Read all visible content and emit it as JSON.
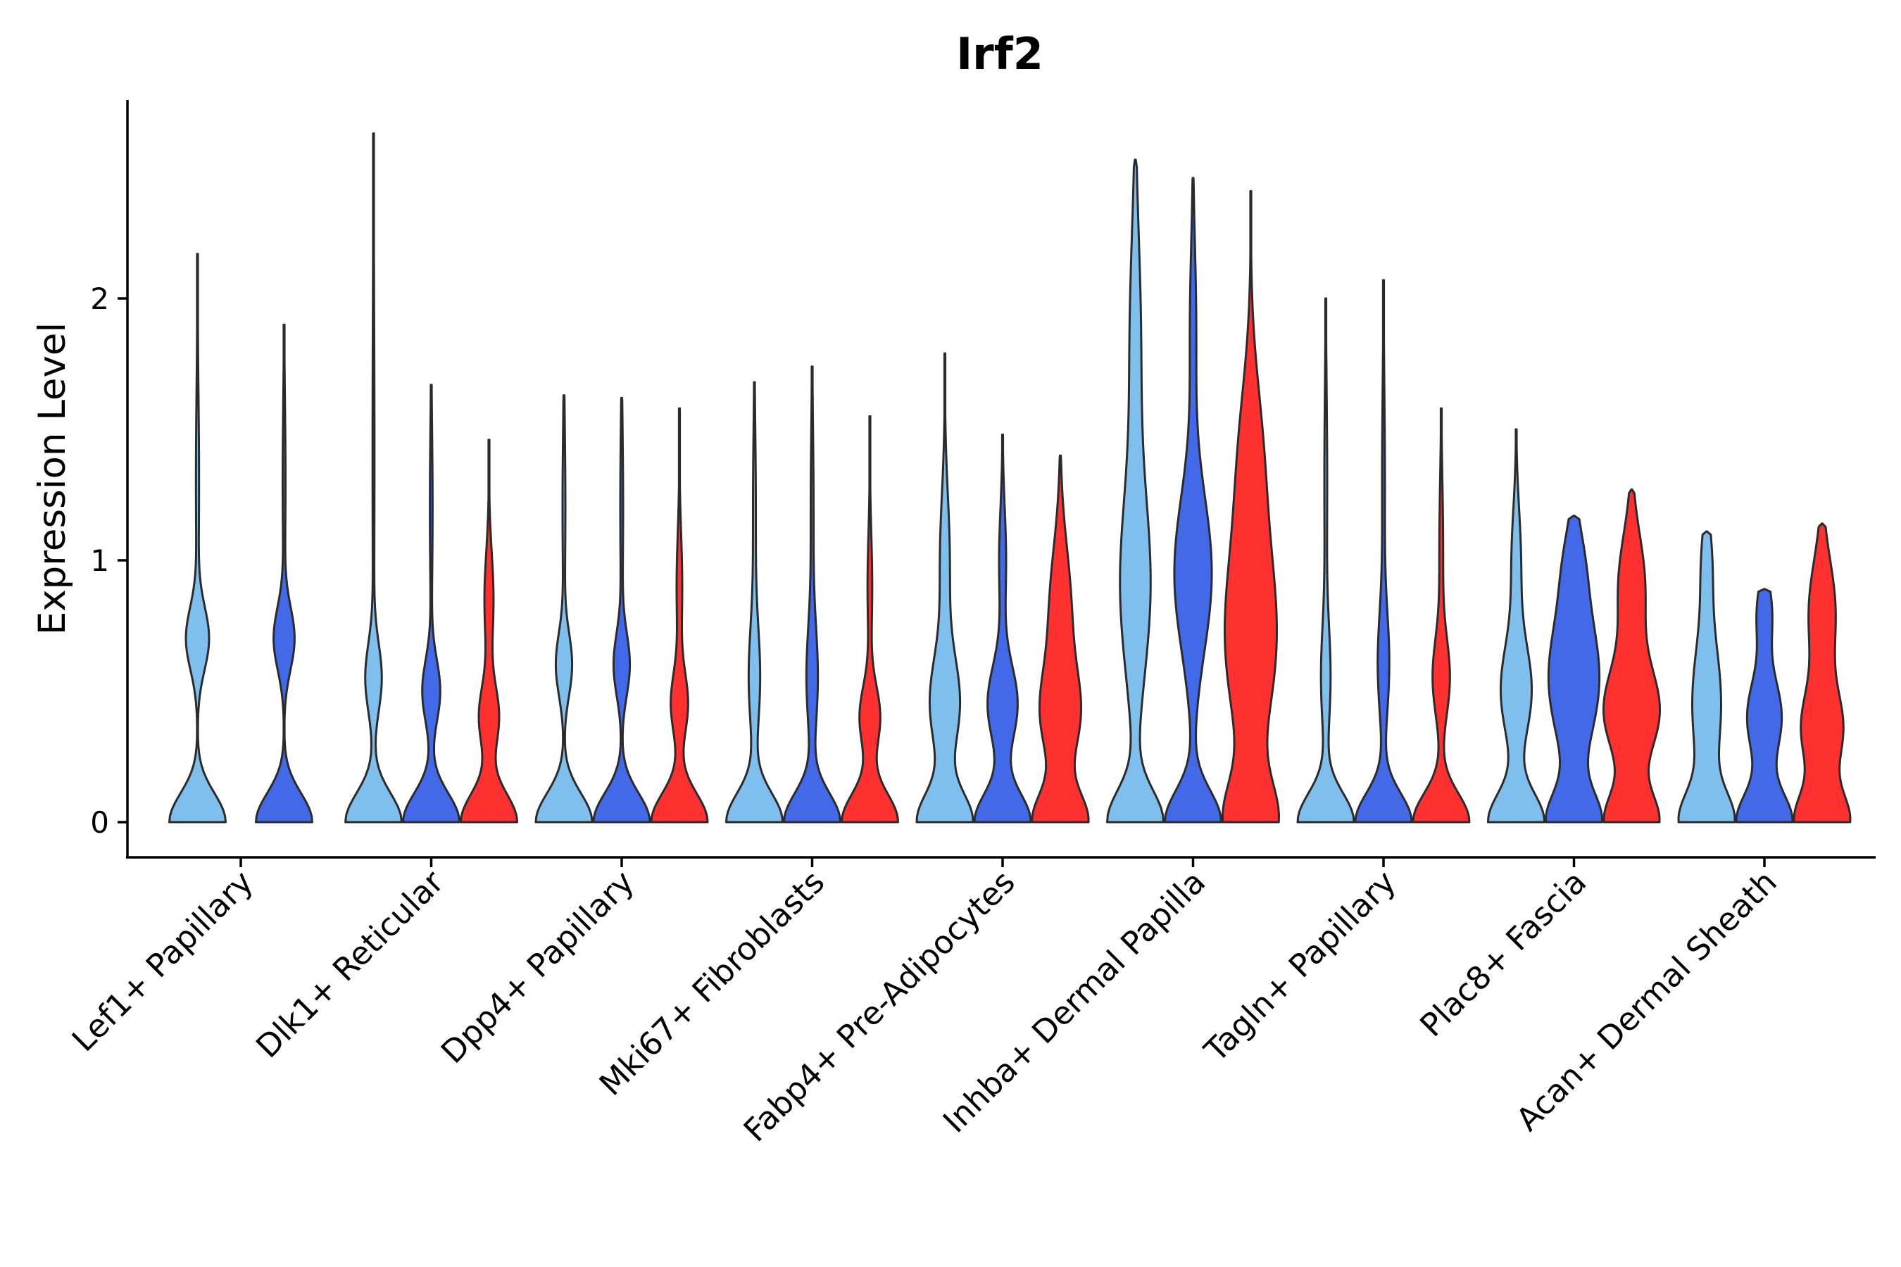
{
  "chart_data": {
    "type": "violin",
    "title": "Irf2",
    "xlabel": "",
    "ylabel": "Expression Level",
    "ylim": [
      -0.13,
      2.75
    ],
    "yticks": [
      0,
      1,
      2
    ],
    "group_colors": [
      "#7fbfee",
      "#4169e8",
      "#ff3030"
    ],
    "categories": [
      {
        "label": "Lef1+ Papillary",
        "violins": [
          {
            "group": 0,
            "max": 2.17,
            "peaks": [
              [
                0.0,
                0.55,
                0.11
              ],
              [
                0.7,
                0.22,
                0.12
              ],
              [
                1.3,
                0.03,
                0.35
              ]
            ]
          },
          {
            "group": 1,
            "max": 1.9,
            "peaks": [
              [
                0.0,
                0.6,
                0.11
              ],
              [
                0.7,
                0.22,
                0.12
              ],
              [
                1.3,
                0.03,
                0.3
              ]
            ]
          }
        ]
      },
      {
        "label": "Dlk1+ Reticular",
        "violins": [
          {
            "group": 0,
            "max": 2.63,
            "peaks": [
              [
                0.0,
                0.6,
                0.11
              ],
              [
                0.55,
                0.17,
                0.13
              ],
              [
                1.4,
                0.02,
                0.6
              ]
            ]
          },
          {
            "group": 1,
            "max": 1.67,
            "peaks": [
              [
                0.0,
                0.63,
                0.11
              ],
              [
                0.5,
                0.2,
                0.12
              ],
              [
                1.2,
                0.03,
                0.3
              ]
            ]
          },
          {
            "group": 2,
            "max": 1.46,
            "peaks": [
              [
                0.0,
                0.62,
                0.11
              ],
              [
                0.4,
                0.22,
                0.12
              ],
              [
                0.85,
                0.1,
                0.18
              ]
            ]
          }
        ]
      },
      {
        "label": "Dpp4+ Papillary",
        "violins": [
          {
            "group": 0,
            "max": 1.63,
            "peaks": [
              [
                0.0,
                0.6,
                0.11
              ],
              [
                0.6,
                0.17,
                0.12
              ],
              [
                1.2,
                0.03,
                0.3
              ]
            ]
          },
          {
            "group": 1,
            "max": 1.62,
            "peaks": [
              [
                0.0,
                0.6,
                0.11
              ],
              [
                0.6,
                0.17,
                0.12
              ],
              [
                1.2,
                0.03,
                0.3
              ]
            ]
          },
          {
            "group": 2,
            "max": 1.58,
            "peaks": [
              [
                0.0,
                0.6,
                0.11
              ],
              [
                0.45,
                0.18,
                0.12
              ],
              [
                0.9,
                0.06,
                0.2
              ]
            ]
          }
        ]
      },
      {
        "label": "Mki67+ Fibroblasts",
        "violins": [
          {
            "group": 0,
            "max": 1.68,
            "peaks": [
              [
                0.0,
                0.6,
                0.11
              ],
              [
                0.55,
                0.12,
                0.2
              ],
              [
                1.2,
                0.03,
                0.3
              ]
            ]
          },
          {
            "group": 1,
            "max": 1.74,
            "peaks": [
              [
                0.0,
                0.6,
                0.11
              ],
              [
                0.55,
                0.12,
                0.2
              ],
              [
                1.2,
                0.03,
                0.3
              ]
            ]
          },
          {
            "group": 2,
            "max": 1.55,
            "peaks": [
              [
                0.0,
                0.6,
                0.11
              ],
              [
                0.4,
                0.22,
                0.12
              ],
              [
                0.9,
                0.05,
                0.2
              ]
            ]
          }
        ]
      },
      {
        "label": "Fabp4+ Pre-Adipocytes",
        "violins": [
          {
            "group": 0,
            "max": 1.79,
            "peaks": [
              [
                0.0,
                0.56,
                0.11
              ],
              [
                0.45,
                0.3,
                0.18
              ],
              [
                1.0,
                0.1,
                0.25
              ]
            ]
          },
          {
            "group": 1,
            "max": 1.48,
            "peaks": [
              [
                0.0,
                0.56,
                0.11
              ],
              [
                0.45,
                0.3,
                0.15
              ],
              [
                1.0,
                0.07,
                0.2
              ]
            ]
          },
          {
            "group": 2,
            "max": 1.4,
            "peaks": [
              [
                0.0,
                0.62,
                0.11
              ],
              [
                0.4,
                0.4,
                0.17
              ],
              [
                0.8,
                0.25,
                0.25
              ]
            ]
          }
        ]
      },
      {
        "label": "Inhba+ Dermal Papilla",
        "violins": [
          {
            "group": 0,
            "max": 2.53,
            "peaks": [
              [
                0.0,
                0.7,
                0.12
              ],
              [
                0.9,
                0.38,
                0.35
              ],
              [
                1.85,
                0.14,
                0.4
              ]
            ]
          },
          {
            "group": 1,
            "max": 2.46,
            "peaks": [
              [
                0.0,
                0.63,
                0.12
              ],
              [
                0.95,
                0.42,
                0.3
              ],
              [
                1.9,
                0.07,
                0.3
              ]
            ]
          },
          {
            "group": 2,
            "max": 2.41,
            "peaks": [
              [
                0.0,
                0.7,
                0.15
              ],
              [
                0.7,
                0.72,
                0.35
              ],
              [
                1.4,
                0.3,
                0.3
              ]
            ]
          }
        ]
      },
      {
        "label": "Tagln+ Papillary",
        "violins": [
          {
            "group": 0,
            "max": 2.0,
            "peaks": [
              [
                0.0,
                0.6,
                0.11
              ],
              [
                0.55,
                0.1,
                0.2
              ],
              [
                1.3,
                0.03,
                0.35
              ]
            ]
          },
          {
            "group": 1,
            "max": 2.07,
            "peaks": [
              [
                0.0,
                0.6,
                0.11
              ],
              [
                0.6,
                0.12,
                0.2
              ],
              [
                1.3,
                0.03,
                0.35
              ]
            ]
          },
          {
            "group": 2,
            "max": 1.58,
            "peaks": [
              [
                0.0,
                0.6,
                0.11
              ],
              [
                0.55,
                0.18,
                0.15
              ],
              [
                1.05,
                0.04,
                0.25
              ]
            ]
          }
        ]
      },
      {
        "label": "Plac8+ Fascia",
        "violins": [
          {
            "group": 0,
            "max": 1.5,
            "peaks": [
              [
                0.0,
                0.6,
                0.11
              ],
              [
                0.5,
                0.33,
                0.18
              ],
              [
                1.0,
                0.1,
                0.2
              ]
            ]
          },
          {
            "group": 1,
            "max": 1.17,
            "peaks": [
              [
                0.0,
                0.56,
                0.11
              ],
              [
                0.55,
                0.55,
                0.25
              ],
              [
                1.0,
                0.15,
                0.15
              ]
            ]
          },
          {
            "group": 2,
            "max": 1.27,
            "peaks": [
              [
                0.0,
                0.6,
                0.11
              ],
              [
                0.42,
                0.62,
                0.17
              ],
              [
                0.9,
                0.3,
                0.2
              ]
            ]
          }
        ]
      },
      {
        "label": "Acan+ Dermal Sheath",
        "violins": [
          {
            "group": 0,
            "max": 1.11,
            "peaks": [
              [
                0.0,
                0.56,
                0.11
              ],
              [
                0.45,
                0.32,
                0.25
              ],
              [
                1.0,
                0.1,
                0.15
              ]
            ]
          },
          {
            "group": 1,
            "max": 0.89,
            "peaks": [
              [
                0.0,
                0.56,
                0.11
              ],
              [
                0.4,
                0.35,
                0.15
              ],
              [
                0.8,
                0.15,
                0.12
              ]
            ]
          },
          {
            "group": 2,
            "max": 1.14,
            "peaks": [
              [
                0.0,
                0.6,
                0.11
              ],
              [
                0.35,
                0.45,
                0.15
              ],
              [
                0.8,
                0.3,
                0.2
              ]
            ]
          }
        ]
      }
    ]
  }
}
